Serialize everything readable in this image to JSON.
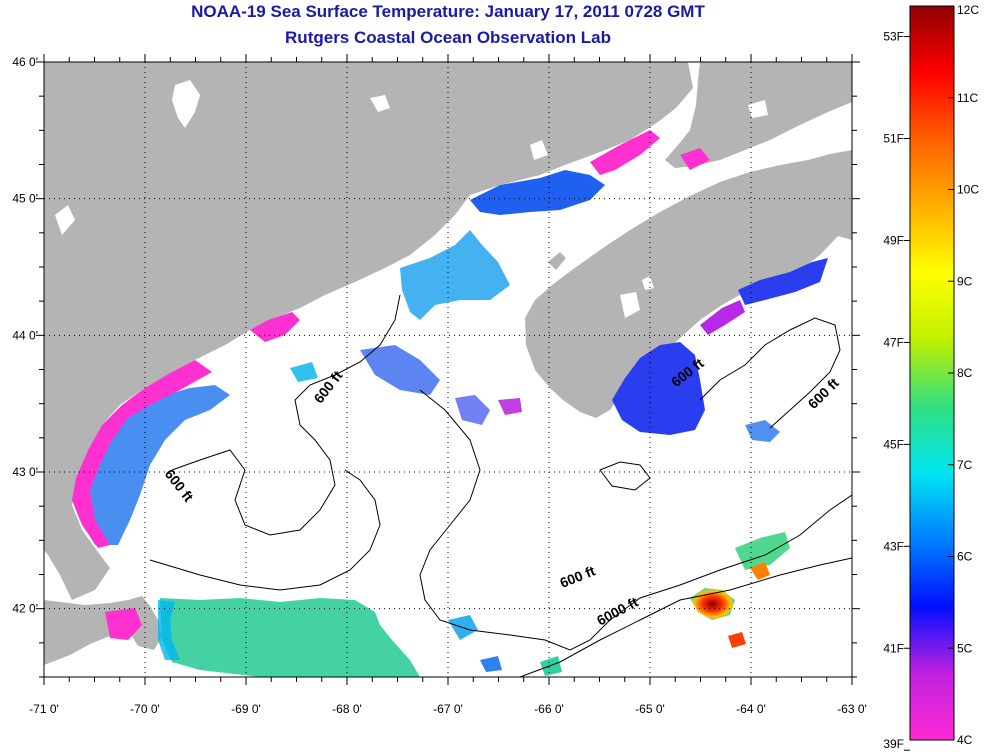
{
  "title": "NOAA-19 Sea Surface Temperature:  January 17, 2011 0728 GMT",
  "subtitle": "Rutgers Coastal Ocean Observation Lab",
  "map": {
    "longitudes": [
      -71,
      -70,
      -69,
      -68,
      -67,
      -66,
      -65,
      -64,
      -63
    ],
    "latitudes": [
      46,
      45,
      44,
      43,
      42
    ],
    "lon_labels": [
      "-71 0'",
      "-70 0'",
      "-69 0'",
      "-68 0'",
      "-67 0'",
      "-66 0'",
      "-65 0'",
      "-64 0'",
      "-63 0'"
    ],
    "lat_labels": [
      "46 0'",
      "45 0'",
      "44 0'",
      "43 0'",
      "42 0'"
    ],
    "land_color": "#b4b4b4",
    "water_color": "#ffffff",
    "contour_labels": [
      {
        "text": "600 ft",
        "lon": -68.15,
        "lat": 43.6,
        "angle": -52
      },
      {
        "text": "600 ft",
        "lon": -69.7,
        "lat": 42.88,
        "angle": 52
      },
      {
        "text": "600 ft",
        "lon": -64.6,
        "lat": 43.7,
        "angle": -38
      },
      {
        "text": "600 ft",
        "lon": -63.25,
        "lat": 43.55,
        "angle": -45
      },
      {
        "text": "600 ft",
        "lon": -65.7,
        "lat": 42.2,
        "angle": -22
      },
      {
        "text": "6000 ft",
        "lon": -65.3,
        "lat": 41.95,
        "angle": -28
      }
    ]
  },
  "colorbar": {
    "celsius_labels": [
      "12C",
      "11C",
      "10C",
      "9C",
      "8C",
      "7C",
      "6C",
      "5C",
      "4C"
    ],
    "fahrenheit_labels": [
      "53F",
      "51F",
      "49F",
      "47F",
      "45F",
      "43F",
      "41F",
      "39F"
    ],
    "min_c": 4,
    "max_c": 12,
    "colors": [
      "#ff2ad4",
      "#c020e0",
      "#0010ff",
      "#0080ff",
      "#00e4f0",
      "#30e080",
      "#c0f000",
      "#ffff00",
      "#ffb000",
      "#ff6000",
      "#ff0000",
      "#900000"
    ]
  }
}
